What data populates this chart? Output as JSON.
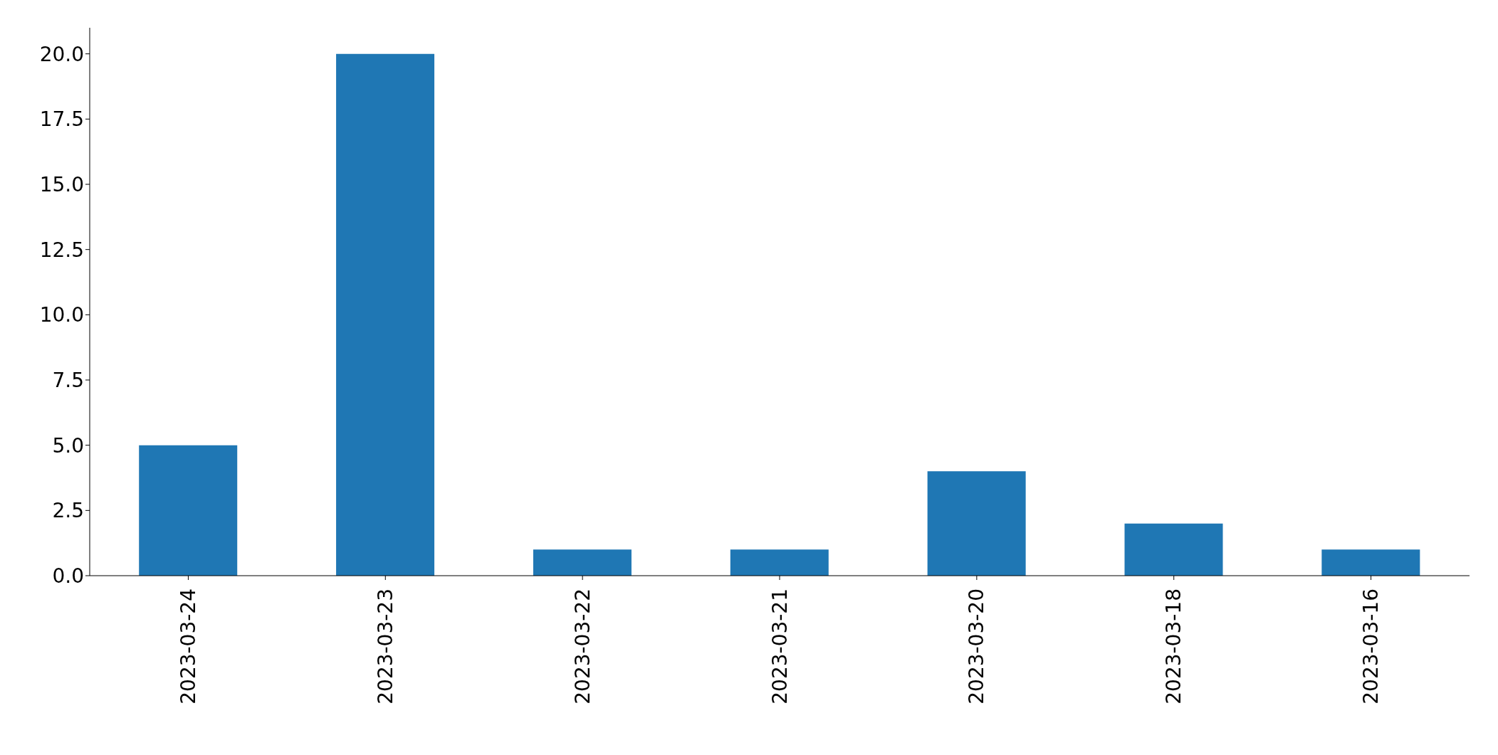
{
  "chart_data": {
    "type": "bar",
    "categories": [
      "2023-03-24",
      "2023-03-23",
      "2023-03-22",
      "2023-03-21",
      "2023-03-20",
      "2023-03-18",
      "2023-03-16"
    ],
    "values": [
      5,
      20,
      1,
      1,
      4,
      2,
      1
    ],
    "color": "#1f77b4",
    "ylim": [
      0,
      21
    ],
    "yticks": [
      {
        "value": 0,
        "label": "0.0"
      },
      {
        "value": 2.5,
        "label": "2.5"
      },
      {
        "value": 5,
        "label": "5.0"
      },
      {
        "value": 7.5,
        "label": "7.5"
      },
      {
        "value": 10,
        "label": "10.0"
      },
      {
        "value": 12.5,
        "label": "12.5"
      },
      {
        "value": 15,
        "label": "15.0"
      },
      {
        "value": 17.5,
        "label": "17.5"
      },
      {
        "value": 20,
        "label": "20.0"
      }
    ]
  }
}
